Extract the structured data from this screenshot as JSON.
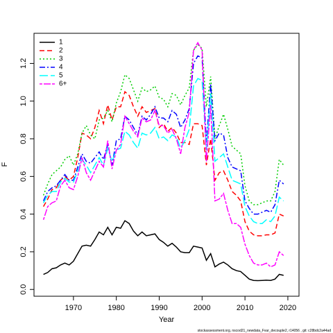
{
  "chart_data": {
    "type": "line",
    "xlabel": "Year",
    "ylabel": "F",
    "footnote": "stockassessment.org, nscod21_newdata_Fvar_decouple2, r14056 , git: c28bdc2a44ad",
    "legend": "top-left",
    "x": [
      1963,
      1964,
      1965,
      1966,
      1967,
      1968,
      1969,
      1970,
      1971,
      1972,
      1973,
      1974,
      1975,
      1976,
      1977,
      1978,
      1979,
      1980,
      1981,
      1982,
      1983,
      1984,
      1985,
      1986,
      1987,
      1988,
      1989,
      1990,
      1991,
      1992,
      1993,
      1994,
      1995,
      1996,
      1997,
      1998,
      1999,
      2000,
      2001,
      2002,
      2003,
      2004,
      2005,
      2006,
      2007,
      2008,
      2009,
      2010,
      2011,
      2012,
      2013,
      2014,
      2015,
      2016,
      2017,
      2018,
      2019
    ],
    "xlim": [
      1960.8,
      2022.6
    ],
    "xticks": [
      1970,
      1980,
      1990,
      2000,
      2010,
      2020
    ],
    "ylim": [
      -0.036,
      1.36
    ],
    "yticks": [
      {
        "value": 0,
        "label": "0.0"
      },
      {
        "value": 0.2,
        "label": "0.2"
      },
      {
        "value": 0.4,
        "label": "0.4"
      },
      {
        "value": 0.6,
        "label": "0.6"
      },
      {
        "value": 0.8,
        "label": "0.8"
      },
      {
        "value": 1,
        "label": "1.0"
      },
      {
        "value": 1.2,
        "label": "1.2"
      }
    ],
    "series": [
      {
        "name": "1",
        "color": "#000000",
        "dash": "",
        "values": [
          0.08,
          0.09,
          0.11,
          0.115,
          0.13,
          0.14,
          0.13,
          0.15,
          0.19,
          0.23,
          0.235,
          0.23,
          0.265,
          0.305,
          0.29,
          0.33,
          0.29,
          0.33,
          0.325,
          0.365,
          0.35,
          0.31,
          0.285,
          0.305,
          0.285,
          0.29,
          0.295,
          0.265,
          0.25,
          0.23,
          0.245,
          0.225,
          0.2,
          0.195,
          0.195,
          0.23,
          0.225,
          0.22,
          0.155,
          0.19,
          0.12,
          0.135,
          0.145,
          0.13,
          0.11,
          0.1,
          0.095,
          0.075,
          0.055,
          0.048,
          0.047,
          0.048,
          0.049,
          0.048,
          0.055,
          0.08,
          0.075
        ]
      },
      {
        "name": "2",
        "color": "#ff0000",
        "dash": "7,4",
        "values": [
          0.44,
          0.48,
          0.53,
          0.54,
          0.58,
          0.6,
          0.58,
          0.6,
          0.7,
          0.83,
          0.82,
          0.8,
          0.86,
          0.95,
          0.88,
          0.98,
          0.9,
          0.97,
          0.97,
          1.05,
          1.03,
          0.97,
          0.92,
          0.97,
          0.94,
          0.95,
          0.96,
          0.86,
          0.88,
          0.84,
          0.86,
          0.83,
          0.78,
          0.78,
          0.77,
          0.88,
          0.88,
          0.87,
          0.66,
          0.8,
          0.58,
          0.62,
          0.63,
          0.58,
          0.52,
          0.5,
          0.47,
          0.36,
          0.31,
          0.29,
          0.285,
          0.285,
          0.29,
          0.29,
          0.3,
          0.4,
          0.39
        ]
      },
      {
        "name": "3",
        "color": "#00cd00",
        "dash": "2,3",
        "values": [
          0.5,
          0.56,
          0.61,
          0.63,
          0.65,
          0.69,
          0.71,
          0.66,
          0.72,
          0.83,
          0.87,
          0.82,
          0.8,
          0.9,
          0.91,
          0.95,
          0.89,
          0.99,
          1.05,
          1.14,
          1.12,
          1.06,
          1.0,
          1.07,
          1.05,
          1.06,
          1.08,
          1.02,
          1.01,
          0.97,
          1.04,
          1.03,
          0.98,
          1.03,
          1.07,
          1.27,
          1.3,
          1.28,
          0.97,
          1.13,
          0.8,
          0.87,
          0.93,
          0.85,
          0.76,
          0.74,
          0.72,
          0.55,
          0.47,
          0.45,
          0.45,
          0.46,
          0.47,
          0.47,
          0.52,
          0.69,
          0.66
        ]
      },
      {
        "name": "4",
        "color": "#0000ff",
        "dash": "8,3,2,3",
        "values": [
          0.47,
          0.52,
          0.54,
          0.55,
          0.58,
          0.61,
          0.58,
          0.58,
          0.65,
          0.72,
          0.68,
          0.67,
          0.7,
          0.73,
          0.69,
          0.77,
          0.66,
          0.79,
          0.8,
          0.92,
          0.9,
          0.86,
          0.82,
          0.92,
          0.9,
          0.93,
          0.97,
          0.91,
          0.91,
          0.89,
          0.95,
          0.93,
          0.86,
          0.9,
          0.96,
          1.2,
          1.24,
          1.23,
          0.78,
          1.09,
          0.79,
          0.83,
          0.82,
          0.7,
          0.65,
          0.64,
          0.63,
          0.47,
          0.43,
          0.4,
          0.4,
          0.41,
          0.42,
          0.41,
          0.45,
          0.58,
          0.56
        ]
      },
      {
        "name": "5",
        "color": "#00ffff",
        "dash": "12,4",
        "values": [
          0.46,
          0.5,
          0.52,
          0.52,
          0.57,
          0.59,
          0.57,
          0.57,
          0.63,
          0.69,
          0.66,
          0.62,
          0.66,
          0.7,
          0.66,
          0.75,
          0.68,
          0.74,
          0.75,
          0.84,
          0.82,
          0.78,
          0.75,
          0.83,
          0.82,
          0.83,
          0.86,
          0.8,
          0.81,
          0.79,
          0.82,
          0.81,
          0.75,
          0.79,
          0.85,
          1.08,
          1.12,
          1.11,
          0.74,
          1.04,
          0.68,
          0.7,
          0.72,
          0.65,
          0.58,
          0.57,
          0.56,
          0.44,
          0.39,
          0.36,
          0.35,
          0.35,
          0.37,
          0.36,
          0.39,
          0.49,
          0.47
        ]
      },
      {
        "name": "6+",
        "color": "#ff00ff",
        "dash": "4,2,10,2",
        "values": [
          0.37,
          0.44,
          0.46,
          0.47,
          0.55,
          0.58,
          0.54,
          0.53,
          0.6,
          0.7,
          0.62,
          0.58,
          0.63,
          0.68,
          0.65,
          0.79,
          0.64,
          0.74,
          0.77,
          0.92,
          0.88,
          0.84,
          0.81,
          0.91,
          0.89,
          0.9,
          0.95,
          0.87,
          0.87,
          0.83,
          0.85,
          0.8,
          0.72,
          0.86,
          0.94,
          1.27,
          1.31,
          1.27,
          0.68,
          0.98,
          0.47,
          0.48,
          0.51,
          0.42,
          0.35,
          0.35,
          0.33,
          0.24,
          0.18,
          0.14,
          0.13,
          0.13,
          0.14,
          0.12,
          0.13,
          0.2,
          0.18
        ]
      }
    ]
  }
}
